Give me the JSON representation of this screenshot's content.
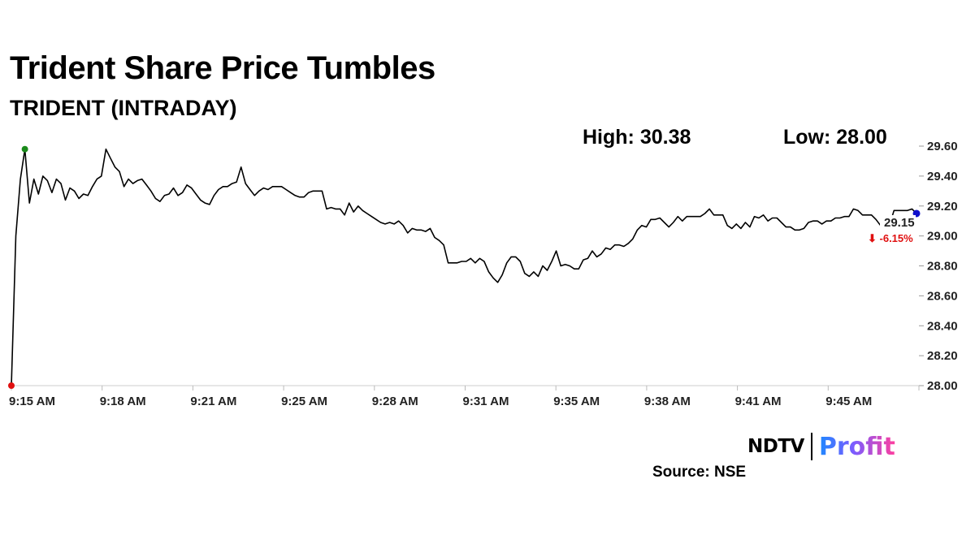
{
  "header": {
    "title": "Trident Share Price Tumbles",
    "subtitle": "TRIDENT (INTRADAY)"
  },
  "stats": {
    "high_label": "High: 30.38",
    "low_label": "Low: 28.00"
  },
  "chart_data": {
    "type": "line",
    "title": "Trident Share Price Tumbles",
    "subtitle": "TRIDENT (INTRADAY)",
    "xlabel": "",
    "ylabel": "",
    "ylim": [
      28.0,
      29.6
    ],
    "y_ticks": [
      "29.60",
      "29.40",
      "29.20",
      "29.00",
      "28.80",
      "28.60",
      "28.40",
      "28.20",
      "28.00"
    ],
    "x_ticks": [
      "9:15 AM",
      "9:18 AM",
      "9:21 AM",
      "9:25 AM",
      "9:28 AM",
      "9:31 AM",
      "9:35 AM",
      "9:38 AM",
      "9:41 AM",
      "9:45 AM"
    ],
    "grid": false,
    "line_color": "#000000",
    "last_value_label": "29.15",
    "change_label": "⬇ -6.15%",
    "change_color": "#e01010",
    "marker_colors": {
      "start": "#e01010",
      "high": "#1a8a1a",
      "last": "#1010cc"
    },
    "series": [
      {
        "values": [
          28.0,
          29.0,
          29.38,
          29.58,
          29.22,
          29.38,
          29.28,
          29.4,
          29.37,
          29.29,
          29.38,
          29.35,
          29.24,
          29.32,
          29.3,
          29.25,
          29.28,
          29.27,
          29.33,
          29.38,
          29.4,
          29.58,
          29.52,
          29.46,
          29.43,
          29.33,
          29.38,
          29.35,
          29.37,
          29.38,
          29.34,
          29.3,
          29.25,
          29.23,
          29.27,
          29.28,
          29.32,
          29.27,
          29.29,
          29.34,
          29.32,
          29.28,
          29.24,
          29.22,
          29.21,
          29.27,
          29.31,
          29.33,
          29.33,
          29.35,
          29.36,
          29.46,
          29.35,
          29.31,
          29.27,
          29.3,
          29.32,
          29.31,
          29.33,
          29.33,
          29.33,
          29.31,
          29.29,
          29.27,
          29.26,
          29.26,
          29.29,
          29.3,
          29.3,
          29.3,
          29.18,
          29.19,
          29.18,
          29.18,
          29.14,
          29.22,
          29.16,
          29.2,
          29.17,
          29.15,
          29.13,
          29.11,
          29.09,
          29.08,
          29.09,
          29.08,
          29.1,
          29.07,
          29.02,
          29.05,
          29.04,
          29.04,
          29.03,
          29.05,
          28.99,
          28.97,
          28.94,
          28.82,
          28.82,
          28.82,
          28.83,
          28.83,
          28.85,
          28.82,
          28.85,
          28.83,
          28.76,
          28.72,
          28.69,
          28.74,
          28.82,
          28.86,
          28.86,
          28.83,
          28.75,
          28.73,
          28.76,
          28.73,
          28.8,
          28.77,
          28.83,
          28.9,
          28.8,
          28.81,
          28.8,
          28.78,
          28.78,
          28.84,
          28.85,
          28.9,
          28.86,
          28.88,
          28.92,
          28.91,
          28.94,
          28.94,
          28.93,
          28.95,
          28.98,
          29.04,
          29.07,
          29.06,
          29.11,
          29.11,
          29.12,
          29.09,
          29.06,
          29.09,
          29.13,
          29.1,
          29.13,
          29.13,
          29.13,
          29.13,
          29.15,
          29.18,
          29.14,
          29.14,
          29.14,
          29.07,
          29.05,
          29.08,
          29.05,
          29.09,
          29.06,
          29.13,
          29.12,
          29.14,
          29.1,
          29.12,
          29.12,
          29.09,
          29.06,
          29.06,
          29.04,
          29.04,
          29.05,
          29.09,
          29.1,
          29.1,
          29.08,
          29.1,
          29.1,
          29.12,
          29.12,
          29.13,
          29.13,
          29.18,
          29.17,
          29.14,
          29.14,
          29.14,
          29.11,
          29.07,
          29.07,
          29.07,
          29.17,
          29.17,
          29.17,
          29.17,
          29.18,
          29.15
        ]
      }
    ]
  },
  "branding": {
    "logo_ndtv": "NDTV",
    "logo_profit": "Profit",
    "source": "Source: NSE"
  }
}
